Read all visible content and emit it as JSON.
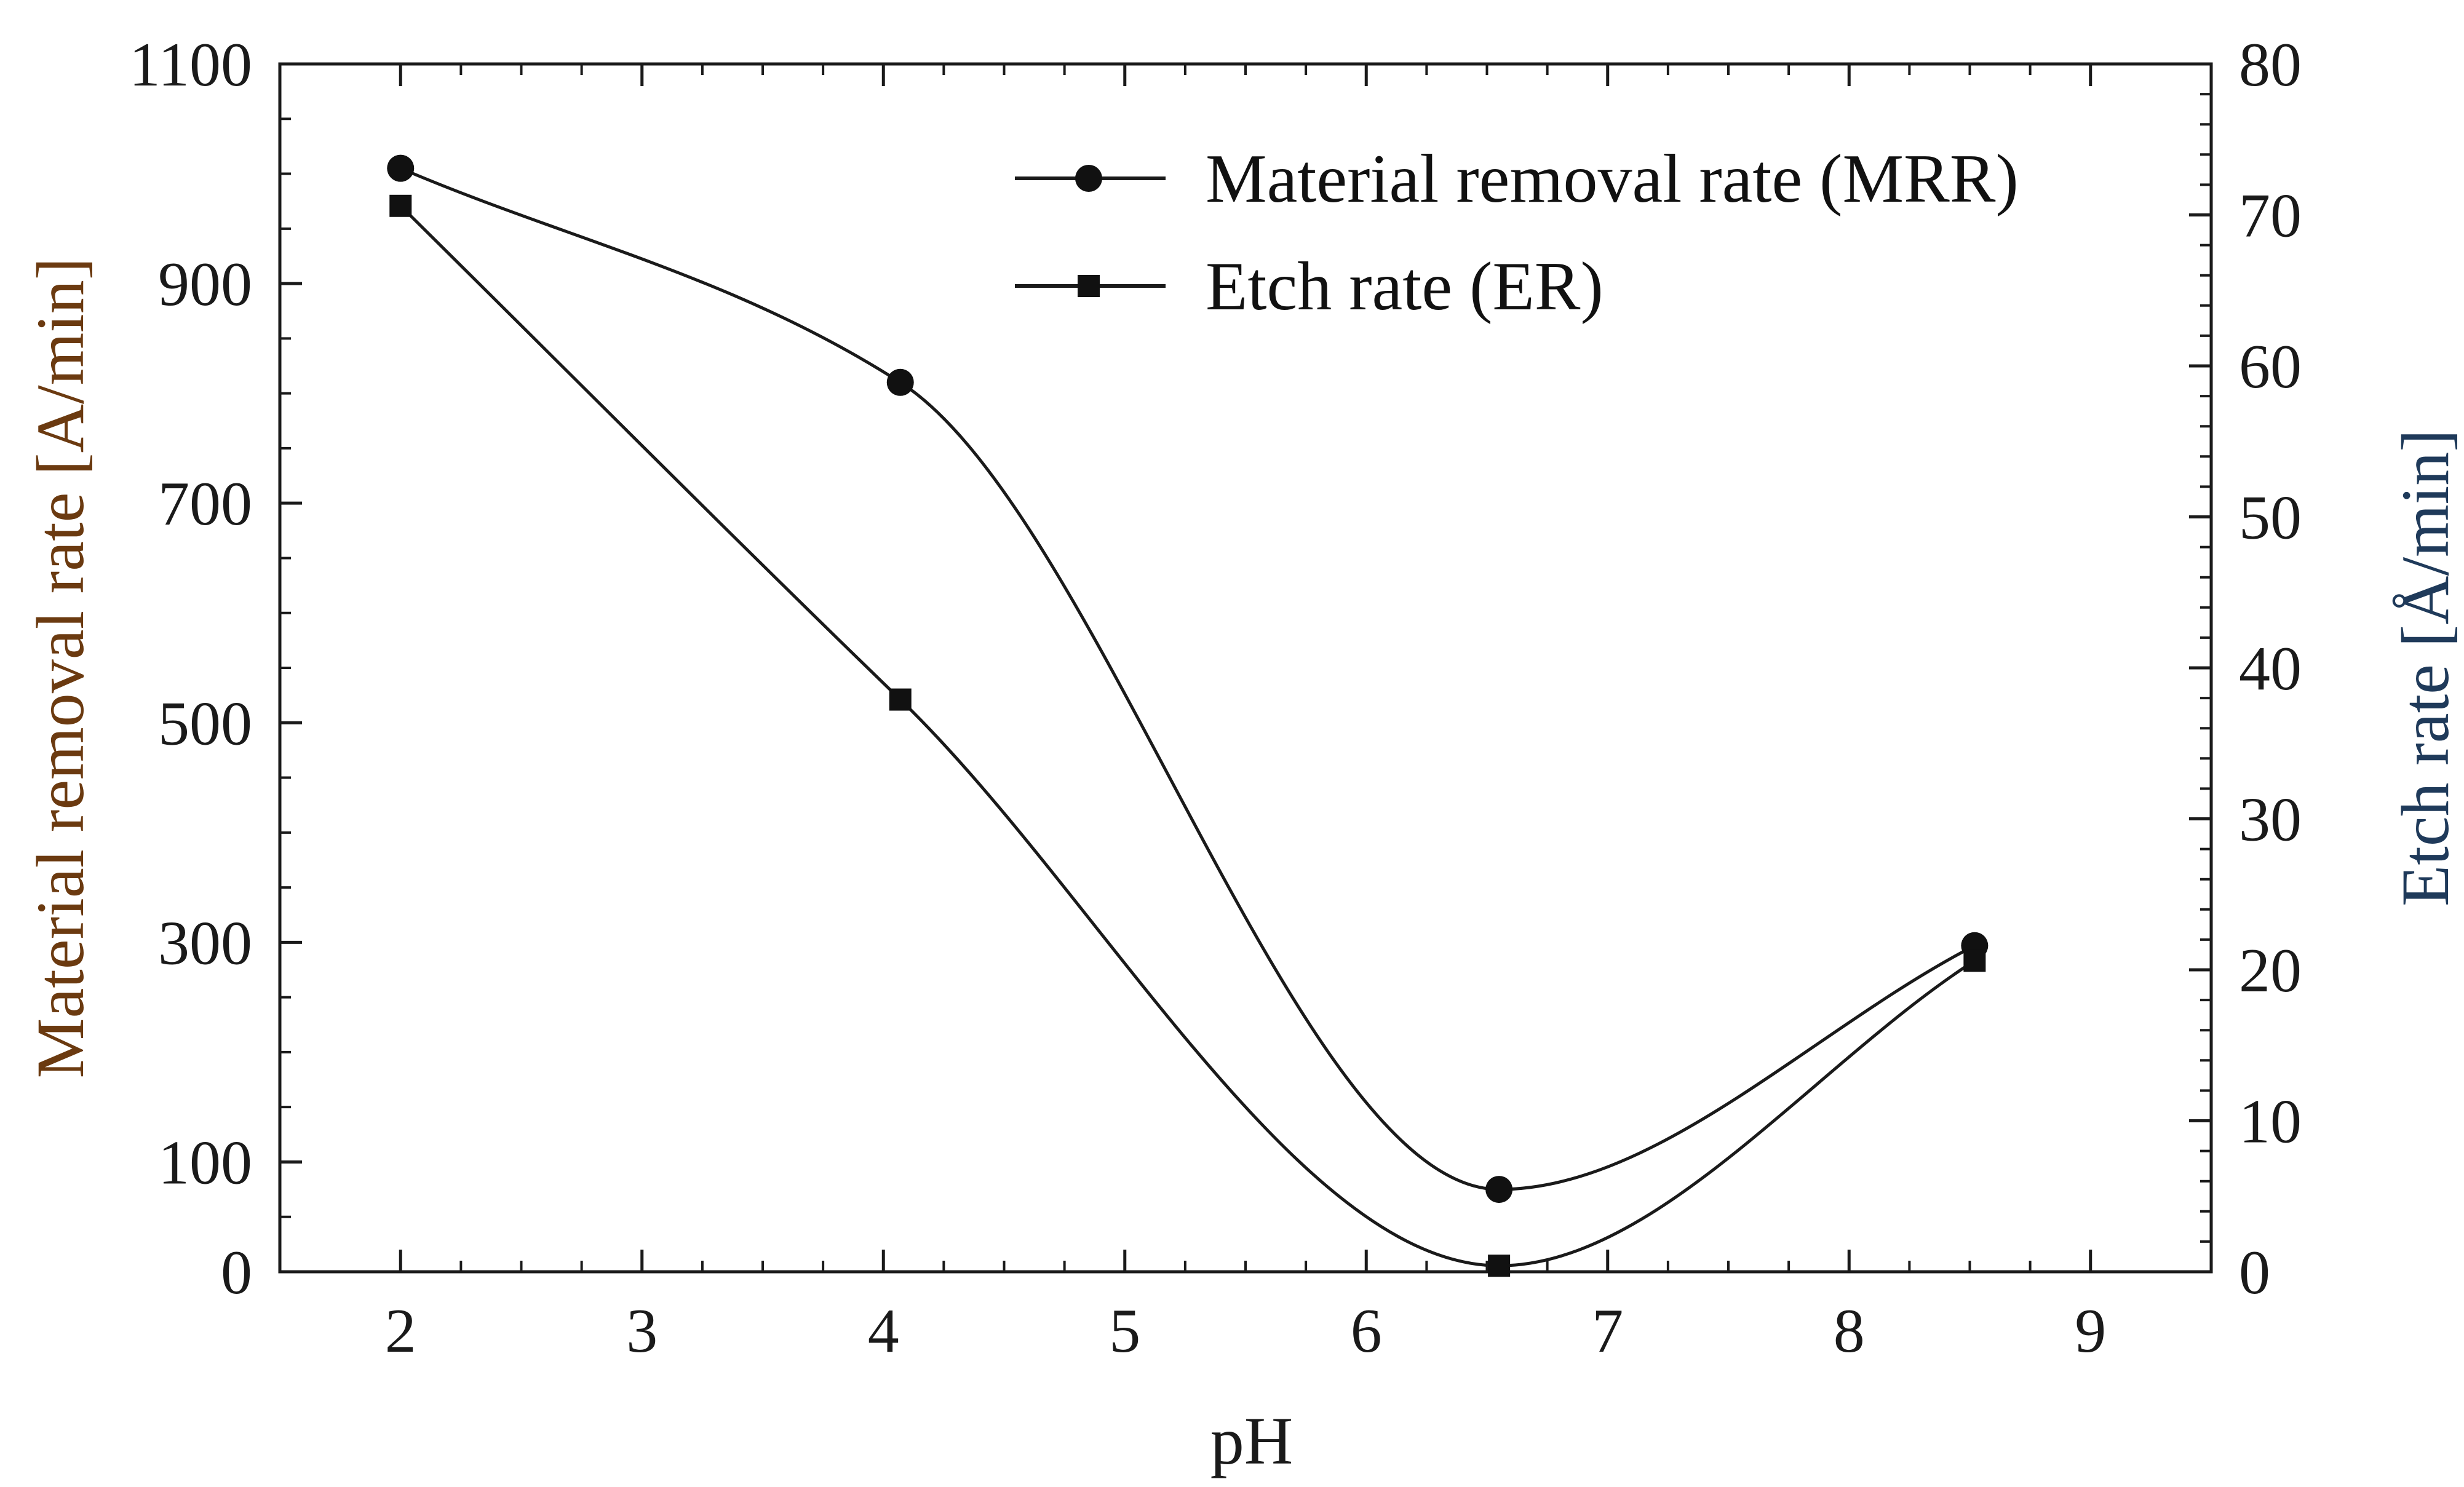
{
  "chart_data": {
    "type": "line",
    "title": "",
    "xlabel": "pH",
    "ylabel": "Material removal rate [A/min]",
    "y2label": "Etch rate [Å/min]",
    "y2label_main": "Etch rate [",
    "y2label_unit": "Å/min]",
    "xlim": [
      1.5,
      9.5
    ],
    "ylim": [
      0,
      1100
    ],
    "y2lim": [
      0,
      80
    ],
    "xticks": [
      2,
      3,
      4,
      5,
      6,
      7,
      8,
      9
    ],
    "yticks": [
      0,
      100,
      300,
      500,
      700,
      900,
      1100
    ],
    "y2ticks": [
      0,
      10,
      20,
      30,
      40,
      50,
      60,
      70,
      80
    ],
    "legend_position": "top-right",
    "series": [
      {
        "name": "Material removal rate (MRR)",
        "axis": "left",
        "marker": "circle",
        "x": [
          2.0,
          4.07,
          6.55,
          8.52
        ],
        "y": [
          1005,
          810,
          75,
          297
        ]
      },
      {
        "name": "Etch rate (ER)",
        "axis": "right",
        "marker": "square",
        "x": [
          2.0,
          4.07,
          6.55,
          8.52
        ],
        "y": [
          70.6,
          37.9,
          0.4,
          20.6
        ]
      }
    ]
  }
}
